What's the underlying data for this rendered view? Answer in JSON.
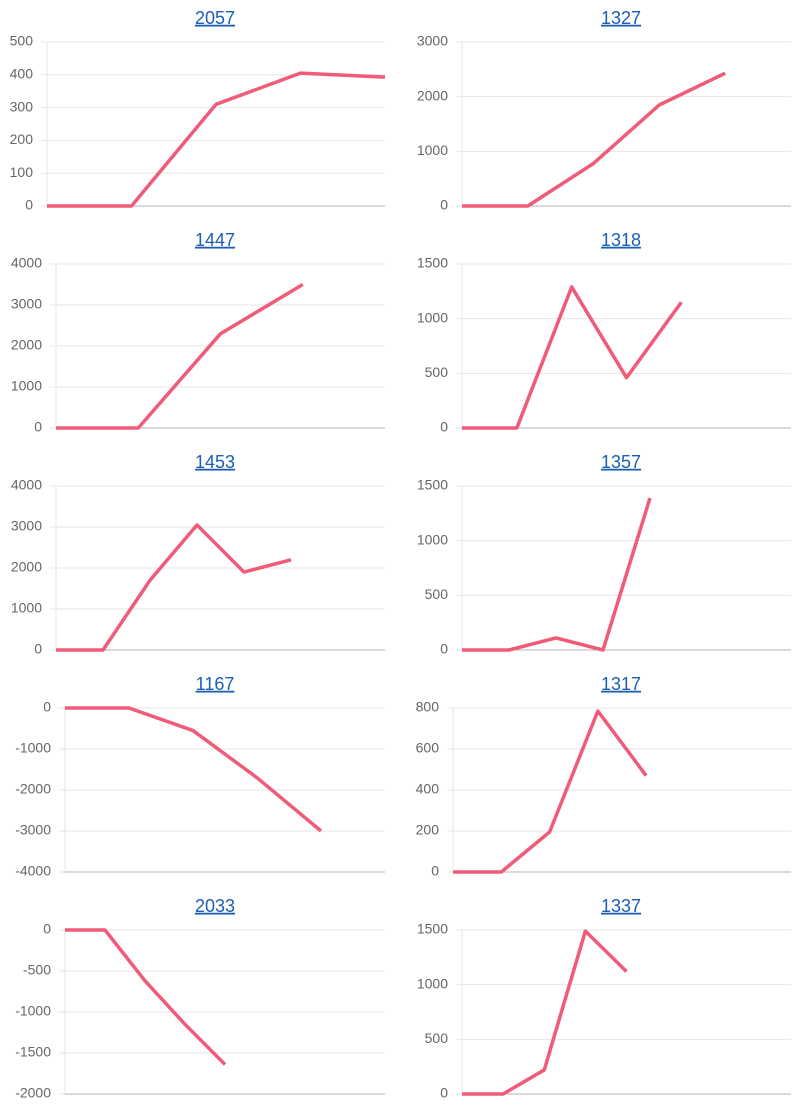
{
  "chart_data": [
    {
      "type": "line",
      "title": "2057",
      "categories": [
        null,
        null,
        null,
        null,
        null
      ],
      "values": [
        0,
        0,
        310,
        405,
        393
      ],
      "color": "#ef5b78",
      "ylim": [
        0,
        500
      ],
      "yticks": [
        0,
        100,
        200,
        300,
        400,
        500
      ],
      "grid": true
    },
    {
      "type": "line",
      "title": "1327",
      "categories": [
        null,
        null,
        null,
        null,
        null,
        null
      ],
      "values": [
        0,
        0,
        780,
        1850,
        2430,
        null
      ],
      "color": "#ef5b78",
      "ylim": [
        0,
        3000
      ],
      "yticks": [
        0,
        1000,
        2000,
        3000
      ],
      "grid": true
    },
    {
      "type": "line",
      "title": "1447",
      "categories": [
        null,
        null,
        null,
        null,
        null
      ],
      "values": [
        0,
        0,
        2300,
        3500,
        null
      ],
      "color": "#ef5b78",
      "ylim": [
        0,
        4000
      ],
      "yticks": [
        0,
        1000,
        2000,
        3000,
        4000
      ],
      "grid": true
    },
    {
      "type": "line",
      "title": "1318",
      "categories": [
        null,
        null,
        null,
        null,
        null,
        null,
        null
      ],
      "values": [
        0,
        0,
        1290,
        460,
        1150,
        null,
        null
      ],
      "color": "#ef5b78",
      "ylim": [
        0,
        1500
      ],
      "yticks": [
        0,
        500,
        1000,
        1500
      ],
      "grid": true
    },
    {
      "type": "line",
      "title": "1453",
      "categories": [
        null,
        null,
        null,
        null,
        null,
        null,
        null,
        null
      ],
      "values": [
        0,
        0,
        1700,
        3050,
        1900,
        2200,
        null,
        null
      ],
      "color": "#ef5b78",
      "ylim": [
        0,
        4000
      ],
      "yticks": [
        0,
        1000,
        2000,
        3000,
        4000
      ],
      "grid": true
    },
    {
      "type": "line",
      "title": "1357",
      "categories": [
        null,
        null,
        null,
        null,
        null,
        null,
        null,
        null
      ],
      "values": [
        0,
        0,
        110,
        0,
        1390,
        null,
        null,
        null
      ],
      "color": "#ef5b78",
      "ylim": [
        0,
        1500
      ],
      "yticks": [
        0,
        500,
        1000,
        1500
      ],
      "grid": true
    },
    {
      "type": "line",
      "title": "1167",
      "categories": [
        null,
        null,
        null,
        null,
        null,
        null
      ],
      "values": [
        0,
        0,
        -550,
        -1700,
        -3000,
        null
      ],
      "color": "#ef5b78",
      "ylim": [
        -4000,
        0
      ],
      "yticks": [
        0,
        -1000,
        -2000,
        -3000,
        -4000
      ],
      "grid": true
    },
    {
      "type": "line",
      "title": "1317",
      "categories": [
        null,
        null,
        null,
        null,
        null,
        null,
        null,
        null
      ],
      "values": [
        0,
        0,
        195,
        785,
        470,
        null,
        null,
        null
      ],
      "color": "#ef5b78",
      "ylim": [
        0,
        800
      ],
      "yticks": [
        0,
        200,
        400,
        600,
        800
      ],
      "grid": true
    },
    {
      "type": "line",
      "title": "2033",
      "categories": [
        null,
        null,
        null,
        null,
        null,
        null,
        null,
        null,
        null
      ],
      "values": [
        0,
        0,
        -620,
        -1150,
        -1640,
        null,
        null,
        null,
        null
      ],
      "color": "#ef5b78",
      "ylim": [
        -2000,
        0
      ],
      "yticks": [
        0,
        -500,
        -1000,
        -1500,
        -2000
      ],
      "grid": true
    },
    {
      "type": "line",
      "title": "1337",
      "categories": [
        null,
        null,
        null,
        null,
        null,
        null,
        null,
        null,
        null
      ],
      "values": [
        0,
        0,
        220,
        1490,
        1120,
        null,
        null,
        null,
        null
      ],
      "color": "#ef5b78",
      "ylim": [
        0,
        1500
      ],
      "yticks": [
        0,
        500,
        1000,
        1500
      ],
      "grid": true
    }
  ]
}
